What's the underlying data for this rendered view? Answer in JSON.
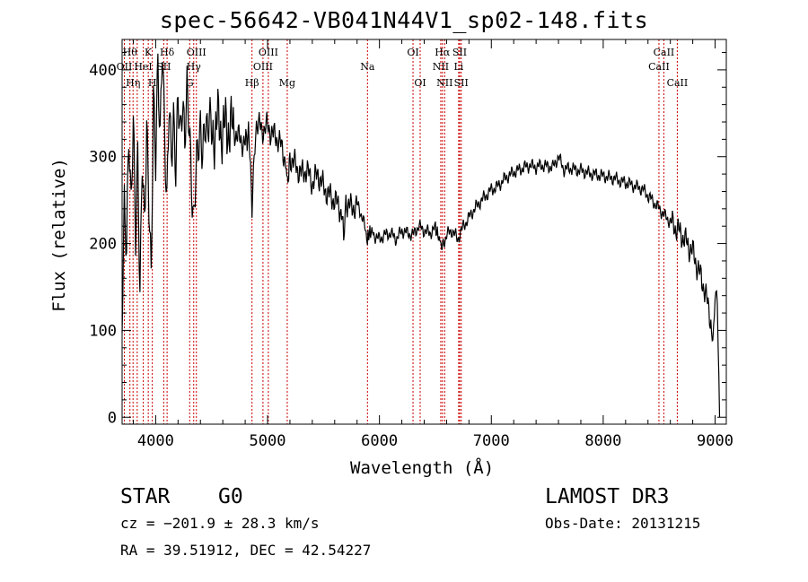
{
  "chart_data": {
    "type": "line",
    "title": "spec-56642-VB041N44V1_sp02-148.fits",
    "xlabel": "Wavelength (Å)",
    "ylabel": "Flux (relative)",
    "xlim": [
      3700,
      9100
    ],
    "ylim": [
      -8,
      435
    ],
    "xticks": [
      4000,
      5000,
      6000,
      7000,
      8000,
      9000
    ],
    "yticks": [
      0,
      100,
      200,
      300,
      400
    ],
    "line_color": "#000000",
    "marker_color": "#cc0000",
    "series": [
      {
        "name": "spectrum",
        "points": [
          [
            3700,
            120
          ],
          [
            3720,
            240
          ],
          [
            3740,
            180
          ],
          [
            3760,
            310
          ],
          [
            3780,
            220
          ],
          [
            3800,
            330
          ],
          [
            3820,
            200
          ],
          [
            3840,
            300
          ],
          [
            3860,
            150
          ],
          [
            3880,
            320
          ],
          [
            3900,
            240
          ],
          [
            3920,
            350
          ],
          [
            3940,
            260
          ],
          [
            3960,
            160
          ],
          [
            3980,
            360
          ],
          [
            4000,
            280
          ],
          [
            4020,
            390
          ],
          [
            4040,
            300
          ],
          [
            4060,
            420
          ],
          [
            4080,
            320
          ],
          [
            4100,
            250
          ],
          [
            4120,
            380
          ],
          [
            4140,
            320
          ],
          [
            4160,
            360
          ],
          [
            4180,
            300
          ],
          [
            4200,
            380
          ],
          [
            4220,
            320
          ],
          [
            4240,
            350
          ],
          [
            4260,
            300
          ],
          [
            4280,
            360
          ],
          [
            4300,
            320
          ],
          [
            4320,
            260
          ],
          [
            4340,
            220
          ],
          [
            4360,
            300
          ],
          [
            4380,
            330
          ],
          [
            4400,
            350
          ],
          [
            4420,
            320
          ],
          [
            4440,
            350
          ],
          [
            4460,
            330
          ],
          [
            4480,
            340
          ],
          [
            4500,
            320
          ],
          [
            4550,
            340
          ],
          [
            4600,
            330
          ],
          [
            4650,
            335
          ],
          [
            4700,
            330
          ],
          [
            4750,
            320
          ],
          [
            4800,
            315
          ],
          [
            4830,
            330
          ],
          [
            4861,
            245
          ],
          [
            4880,
            310
          ],
          [
            4900,
            340
          ],
          [
            4950,
            330
          ],
          [
            5000,
            335
          ],
          [
            5050,
            325
          ],
          [
            5100,
            320
          ],
          [
            5150,
            300
          ],
          [
            5183,
            270
          ],
          [
            5200,
            300
          ],
          [
            5250,
            290
          ],
          [
            5300,
            280
          ],
          [
            5350,
            285
          ],
          [
            5400,
            270
          ],
          [
            5450,
            280
          ],
          [
            5500,
            265
          ],
          [
            5550,
            255
          ],
          [
            5600,
            250
          ],
          [
            5650,
            240
          ],
          [
            5680,
            215
          ],
          [
            5700,
            250
          ],
          [
            5750,
            240
          ],
          [
            5800,
            245
          ],
          [
            5850,
            230
          ],
          [
            5893,
            205
          ],
          [
            5920,
            215
          ],
          [
            5950,
            210
          ],
          [
            6000,
            205
          ],
          [
            6050,
            210
          ],
          [
            6100,
            212
          ],
          [
            6150,
            205
          ],
          [
            6200,
            215
          ],
          [
            6250,
            212
          ],
          [
            6300,
            210
          ],
          [
            6350,
            220
          ],
          [
            6400,
            215
          ],
          [
            6450,
            212
          ],
          [
            6500,
            218
          ],
          [
            6563,
            195
          ],
          [
            6600,
            210
          ],
          [
            6650,
            215
          ],
          [
            6700,
            205
          ],
          [
            6750,
            220
          ],
          [
            6800,
            230
          ],
          [
            6850,
            240
          ],
          [
            6900,
            248
          ],
          [
            6950,
            255
          ],
          [
            7000,
            262
          ],
          [
            7050,
            265
          ],
          [
            7100,
            272
          ],
          [
            7150,
            278
          ],
          [
            7200,
            282
          ],
          [
            7250,
            285
          ],
          [
            7300,
            288
          ],
          [
            7350,
            290
          ],
          [
            7400,
            288
          ],
          [
            7450,
            290
          ],
          [
            7500,
            289
          ],
          [
            7550,
            288
          ],
          [
            7600,
            300
          ],
          [
            7650,
            285
          ],
          [
            7700,
            287
          ],
          [
            7750,
            285
          ],
          [
            7800,
            284
          ],
          [
            7850,
            282
          ],
          [
            7900,
            280
          ],
          [
            7950,
            279
          ],
          [
            8000,
            278
          ],
          [
            8050,
            276
          ],
          [
            8100,
            275
          ],
          [
            8150,
            272
          ],
          [
            8200,
            270
          ],
          [
            8250,
            268
          ],
          [
            8300,
            265
          ],
          [
            8350,
            263
          ],
          [
            8400,
            255
          ],
          [
            8450,
            248
          ],
          [
            8500,
            240
          ],
          [
            8550,
            232
          ],
          [
            8600,
            225
          ],
          [
            8650,
            218
          ],
          [
            8700,
            210
          ],
          [
            8750,
            200
          ],
          [
            8800,
            190
          ],
          [
            8850,
            170
          ],
          [
            8900,
            150
          ],
          [
            8950,
            120
          ],
          [
            8980,
            80
          ],
          [
            9000,
            140
          ],
          [
            9020,
            125
          ],
          [
            9040,
            0
          ]
        ]
      }
    ],
    "line_markers": [
      {
        "x": 3720,
        "label": "OII",
        "row": 2
      },
      {
        "x": 3770,
        "label": "Hθ",
        "row": 1
      },
      {
        "x": 3798,
        "label": "Hη",
        "row": 3
      },
      {
        "x": 3835,
        "label": "",
        "row": 0
      },
      {
        "x": 3889,
        "label": "HeI",
        "row": 2
      },
      {
        "x": 3934,
        "label": "K",
        "row": 1
      },
      {
        "x": 3970,
        "label": "H",
        "row": 3
      },
      {
        "x": 4072,
        "label": "SII",
        "row": 2
      },
      {
        "x": 4102,
        "label": "Hδ",
        "row": 1
      },
      {
        "x": 4304,
        "label": "G",
        "row": 3
      },
      {
        "x": 4340,
        "label": "Hγ",
        "row": 2
      },
      {
        "x": 4364,
        "label": "OIII",
        "row": 1
      },
      {
        "x": 4861,
        "label": "Hβ",
        "row": 3
      },
      {
        "x": 4959,
        "label": "OIII",
        "row": 2
      },
      {
        "x": 5007,
        "label": "OIII",
        "row": 1
      },
      {
        "x": 5176,
        "label": "Mg",
        "row": 3
      },
      {
        "x": 5893,
        "label": "Na",
        "row": 2
      },
      {
        "x": 6300,
        "label": "OI",
        "row": 1
      },
      {
        "x": 6364,
        "label": "OI",
        "row": 3
      },
      {
        "x": 6548,
        "label": "NII",
        "row": 2
      },
      {
        "x": 6563,
        "label": "Hα",
        "row": 1
      },
      {
        "x": 6583,
        "label": "NII",
        "row": 3
      },
      {
        "x": 6708,
        "label": "Li",
        "row": 2
      },
      {
        "x": 6717,
        "label": "SII",
        "row": 1
      },
      {
        "x": 6731,
        "label": "SII",
        "row": 3
      },
      {
        "x": 8498,
        "label": "CaII",
        "row": 2
      },
      {
        "x": 8542,
        "label": "CaII",
        "row": 1
      },
      {
        "x": 8662,
        "label": "CaII",
        "row": 3
      }
    ]
  },
  "info": {
    "object_class": "STAR",
    "subclass": "G0",
    "survey": "LAMOST DR3",
    "cz": "cz = −201.9 ± 28.3 km/s",
    "obs_date": "Obs-Date: 20131215",
    "coords": "RA =  39.51912, DEC =  42.54227"
  }
}
